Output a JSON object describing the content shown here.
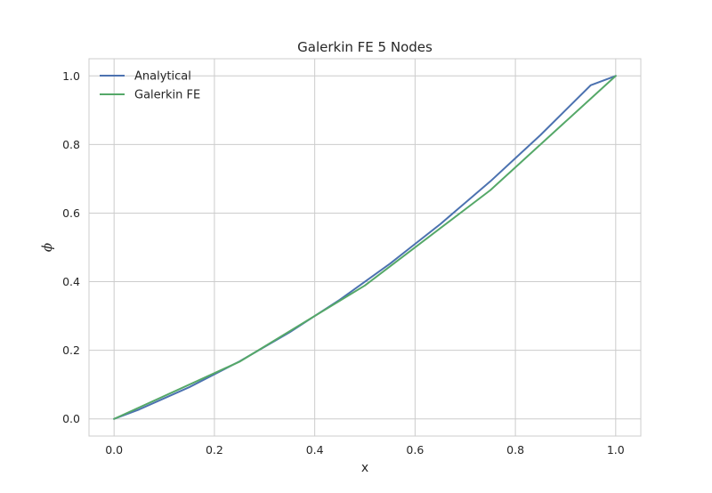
{
  "chart_data": {
    "type": "line",
    "title": "Galerkin FE 5 Nodes",
    "xlabel": "x",
    "ylabel": "ϕ",
    "xlim": [
      -0.05,
      1.05
    ],
    "ylim": [
      -0.05,
      1.05
    ],
    "xticks": [
      0.0,
      0.2,
      0.4,
      0.6,
      0.8,
      1.0
    ],
    "yticks": [
      0.0,
      0.2,
      0.4,
      0.6,
      0.8,
      1.0
    ],
    "xtick_labels": [
      "0.0",
      "0.2",
      "0.4",
      "0.6",
      "0.8",
      "1.0"
    ],
    "ytick_labels": [
      "0.0",
      "0.2",
      "0.4",
      "0.6",
      "0.8",
      "1.0"
    ],
    "grid": true,
    "legend_position": "top-left",
    "series": [
      {
        "name": "Analytical",
        "color": "#4c72b0",
        "x": [
          0.0,
          0.05,
          0.1,
          0.15,
          0.2,
          0.25,
          0.3,
          0.35,
          0.4,
          0.45,
          0.5,
          0.55,
          0.6,
          0.65,
          0.7,
          0.75,
          0.8,
          0.85,
          0.9,
          0.95,
          1.0
        ],
        "y": [
          0.0,
          0.0275,
          0.06,
          0.0925,
          0.13,
          0.1675,
          0.21,
          0.2525,
          0.3,
          0.3475,
          0.4,
          0.4525,
          0.51,
          0.5675,
          0.63,
          0.6925,
          0.76,
          0.8275,
          0.9,
          0.9725,
          1.0
        ]
      },
      {
        "name": "Galerkin FE",
        "color": "#55a868",
        "x": [
          0.0,
          0.25,
          0.5,
          0.75,
          1.0
        ],
        "y": [
          0.0,
          0.1667,
          0.3889,
          0.6667,
          1.0
        ]
      }
    ]
  }
}
